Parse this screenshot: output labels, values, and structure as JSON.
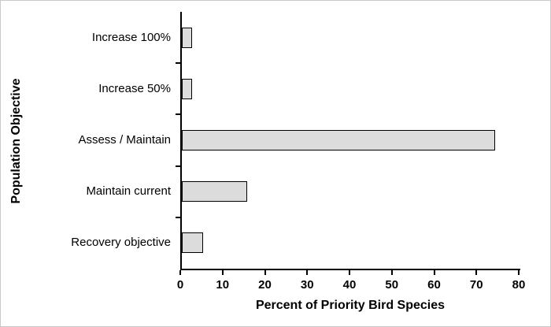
{
  "chart_data": {
    "type": "bar",
    "orientation": "horizontal",
    "title": "",
    "xlabel": "Percent of Priority Bird Species",
    "ylabel": "Population Objective",
    "categories": [
      "Increase 100%",
      "Increase 50%",
      "Assess / Maintain",
      "Maintain current",
      "Recovery objective"
    ],
    "values": [
      2.5,
      2.5,
      74,
      15.5,
      5
    ],
    "xlim": [
      0,
      80
    ],
    "xticks": [
      0,
      10,
      20,
      30,
      40,
      50,
      60,
      70,
      80
    ],
    "grid": false,
    "legend": "none",
    "colors": {
      "bar_fill": "#dcdcdc",
      "bar_stroke": "#000000",
      "axis": "#000000",
      "text": "#000000",
      "background": "#ffffff"
    }
  }
}
